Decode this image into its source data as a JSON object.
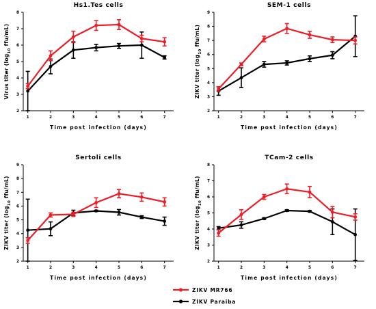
{
  "chart_data": [
    {
      "type": "line",
      "title": "Hs1.Tes cells",
      "ylabel": "Virus titer (log10 ffu/mL)",
      "xlabel": "Time post infection (days)",
      "x": [
        1,
        2,
        3,
        4,
        5,
        6,
        7
      ],
      "xlim": [
        0.8,
        7.4
      ],
      "ylim": [
        2,
        8
      ],
      "yticks": [
        2,
        3,
        4,
        5,
        6,
        7,
        8
      ],
      "series": [
        {
          "name": "ZIKV MR766",
          "values": [
            3.5,
            5.35,
            6.5,
            7.2,
            7.25,
            6.4,
            6.2
          ],
          "err": [
            0.15,
            0.3,
            0.35,
            0.3,
            0.3,
            0.2,
            0.25
          ]
        },
        {
          "name": "ZIKV Paraiba",
          "values": [
            3.2,
            4.7,
            5.7,
            5.85,
            5.95,
            6.0,
            5.25
          ],
          "err": [
            1.2,
            0.45,
            0.5,
            0.2,
            0.15,
            0.8,
            0.1
          ]
        }
      ]
    },
    {
      "type": "line",
      "title": "SEM-1 cells",
      "ylabel": "ZIKV titer (log10 ffu/mL)",
      "xlabel": "Time post infection (days)",
      "x": [
        1,
        2,
        3,
        4,
        5,
        6,
        7
      ],
      "xlim": [
        0.8,
        7.4
      ],
      "ylim": [
        2,
        9
      ],
      "yticks": [
        2,
        3,
        4,
        5,
        6,
        7,
        8,
        9
      ],
      "series": [
        {
          "name": "ZIKV MR766",
          "values": [
            3.55,
            5.3,
            7.1,
            7.85,
            7.4,
            7.05,
            7.0
          ],
          "err": [
            0.15,
            0.1,
            0.2,
            0.35,
            0.25,
            0.2,
            0.25
          ]
        },
        {
          "name": "ZIKV Paraiba",
          "values": [
            3.4,
            4.35,
            5.3,
            5.4,
            5.7,
            5.95,
            7.3
          ],
          "err": [
            0.3,
            0.7,
            0.2,
            0.15,
            0.2,
            0.25,
            1.45
          ]
        }
      ]
    },
    {
      "type": "line",
      "title": "Sertoli cells",
      "ylabel": "ZIKV titer (log10 ffu/mL)",
      "xlabel": "Time post infection (days)",
      "x": [
        1,
        2,
        3,
        4,
        5,
        6,
        7
      ],
      "xlim": [
        0.8,
        7.4
      ],
      "ylim": [
        2,
        9
      ],
      "yticks": [
        2,
        3,
        4,
        5,
        6,
        7,
        8,
        9
      ],
      "series": [
        {
          "name": "ZIKV MR766",
          "values": [
            3.5,
            5.35,
            5.4,
            6.25,
            6.9,
            6.65,
            6.3
          ],
          "err": [
            0.2,
            0.15,
            0.15,
            0.35,
            0.3,
            0.3,
            0.3
          ]
        },
        {
          "name": "ZIKV Paraiba",
          "values": [
            4.25,
            4.35,
            5.5,
            5.65,
            5.55,
            5.2,
            4.9
          ],
          "err": [
            2.25,
            0.5,
            0.2,
            0.05,
            0.2,
            0.1,
            0.3
          ]
        }
      ]
    },
    {
      "type": "line",
      "title": "TCam-2 cells",
      "ylabel": "ZIKV titer (log10 ffu/mL)",
      "xlabel": "Time post infection (days)",
      "x": [
        1,
        2,
        3,
        4,
        5,
        6,
        7
      ],
      "xlim": [
        0.8,
        7.4
      ],
      "ylim": [
        2,
        8
      ],
      "yticks": [
        2,
        3,
        4,
        5,
        6,
        7,
        8
      ],
      "series": [
        {
          "name": "ZIKV MR766",
          "values": [
            3.75,
            4.9,
            6.0,
            6.5,
            6.3,
            5.05,
            4.75
          ],
          "err": [
            0.2,
            0.3,
            0.15,
            0.3,
            0.35,
            0.35,
            0.2
          ]
        },
        {
          "name": "ZIKV Paraiba",
          "values": [
            4.05,
            4.25,
            4.65,
            5.15,
            5.1,
            4.45,
            3.65
          ],
          "err": [
            0.1,
            0.2,
            0.05,
            0.05,
            0.05,
            0.8,
            1.6
          ]
        }
      ]
    }
  ],
  "legend": [
    {
      "label": "ZIKV MR766",
      "color": "#ee1c25"
    },
    {
      "label": "ZIKV Paraiba",
      "color": "#000000"
    }
  ]
}
